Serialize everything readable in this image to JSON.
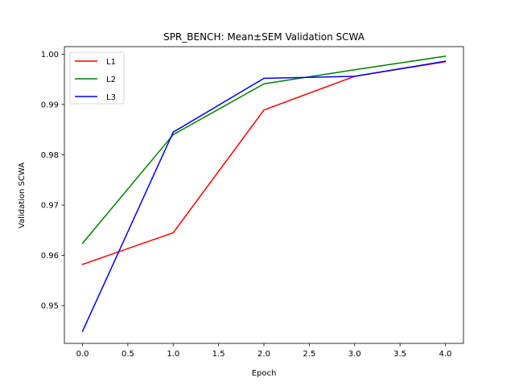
{
  "chart_data": {
    "type": "line",
    "title": "SPR_BENCH: Mean±SEM Validation SCWA",
    "xlabel": "Epoch",
    "ylabel": "Validation SCWA",
    "x": [
      0,
      1,
      2,
      3,
      4
    ],
    "xlim": [
      -0.2,
      4.2
    ],
    "ylim": [
      0.9425,
      1.0015
    ],
    "xticks": [
      0.0,
      0.5,
      1.0,
      1.5,
      2.0,
      2.5,
      3.0,
      3.5,
      4.0
    ],
    "xtick_labels": [
      "0.0",
      "0.5",
      "1.0",
      "1.5",
      "2.0",
      "2.5",
      "3.0",
      "3.5",
      "4.0"
    ],
    "yticks": [
      0.95,
      0.96,
      0.97,
      0.98,
      0.99,
      1.0
    ],
    "ytick_labels": [
      "0.95",
      "0.96",
      "0.97",
      "0.98",
      "0.99",
      "1.00"
    ],
    "grid": false,
    "legend": "top-left",
    "series": [
      {
        "name": "L1",
        "color": "#ff0000",
        "values": [
          0.9582,
          0.9645,
          0.9889,
          0.9956,
          0.9985
        ]
      },
      {
        "name": "L2",
        "color": "#008000",
        "values": [
          0.9624,
          0.984,
          0.9941,
          0.9969,
          0.9996
        ]
      },
      {
        "name": "L3",
        "color": "#0000ff",
        "values": [
          0.9449,
          0.9845,
          0.9952,
          0.9956,
          0.9986
        ]
      }
    ]
  }
}
